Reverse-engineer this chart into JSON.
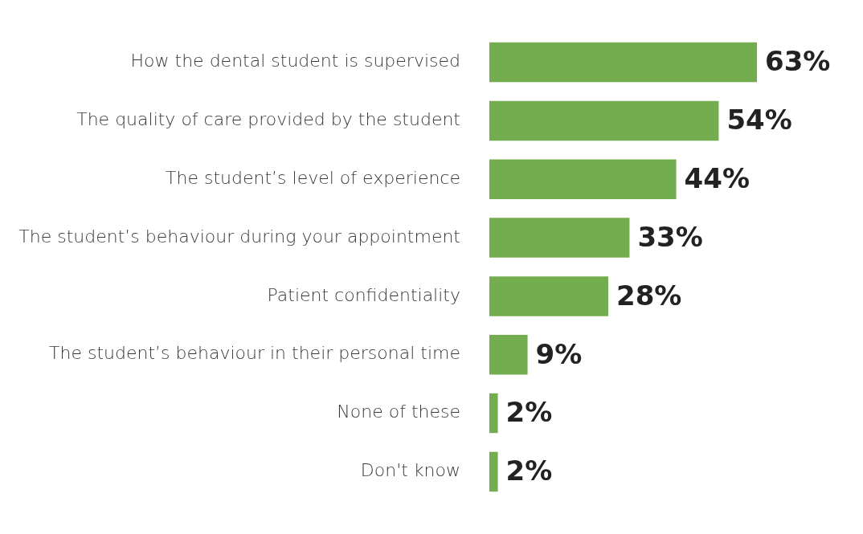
{
  "chart_data": {
    "type": "bar",
    "orientation": "horizontal",
    "categories": [
      "How the dental student is supervised",
      "The quality of care provided by the student",
      "The student’s level of experience",
      "The student’s behaviour during your appointment",
      "Patient confidentiality",
      "The student’s behaviour in their personal time",
      "None of these",
      "Don't know"
    ],
    "values": [
      63,
      54,
      44,
      33,
      28,
      9,
      2,
      2
    ],
    "value_labels": [
      "63%",
      "54%",
      "44%",
      "33%",
      "28%",
      "9%",
      "2%",
      "2%"
    ],
    "color": "#74ad4f",
    "tick_labels": "y",
    "legend": false
  }
}
